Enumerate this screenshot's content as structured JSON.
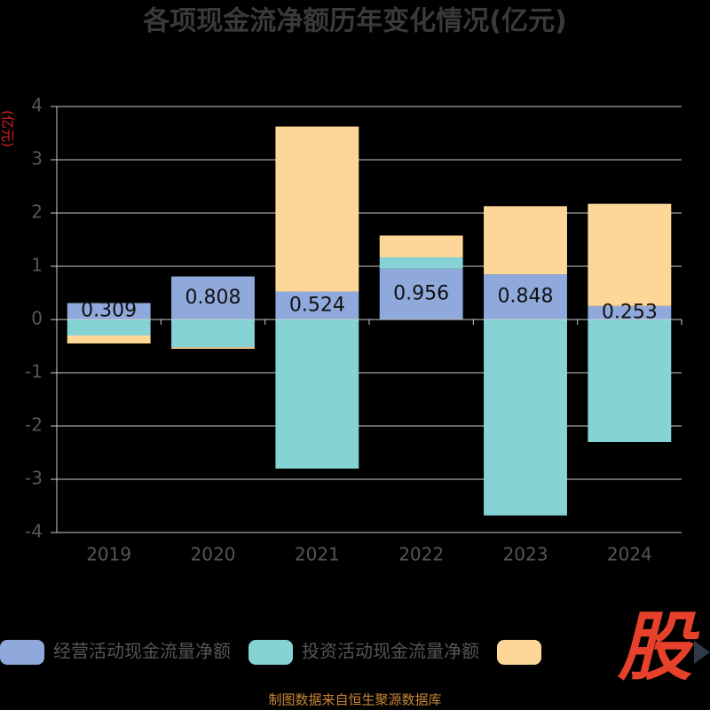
{
  "chart_data": {
    "type": "bar",
    "stacked": true,
    "title": "各项现金流净额历年变化情况(亿元)",
    "y_label": "(亿元)",
    "categories": [
      "2019",
      "2020",
      "2021",
      "2022",
      "2023",
      "2024"
    ],
    "series": [
      {
        "name": "经营活动现金流量净额",
        "color": "#8fa9dc",
        "values": [
          0.309,
          0.808,
          0.524,
          0.956,
          0.848,
          0.253
        ],
        "show_labels": true
      },
      {
        "name": "投资活动现金流量净额",
        "color": "#86d3d6",
        "values": [
          -0.3,
          -0.52,
          -2.8,
          0.21,
          -3.68,
          -2.3
        ]
      },
      {
        "color": "#fdd797",
        "values": [
          -0.15,
          -0.03,
          3.1,
          0.41,
          1.28,
          1.92
        ]
      }
    ],
    "ylim": [
      -4,
      4
    ],
    "yticks": [
      -4,
      -3,
      -2,
      -1,
      0,
      1,
      2,
      3,
      4
    ],
    "grid": true,
    "watermark": "股",
    "source": "制图数据来自恒生聚源数据库"
  }
}
